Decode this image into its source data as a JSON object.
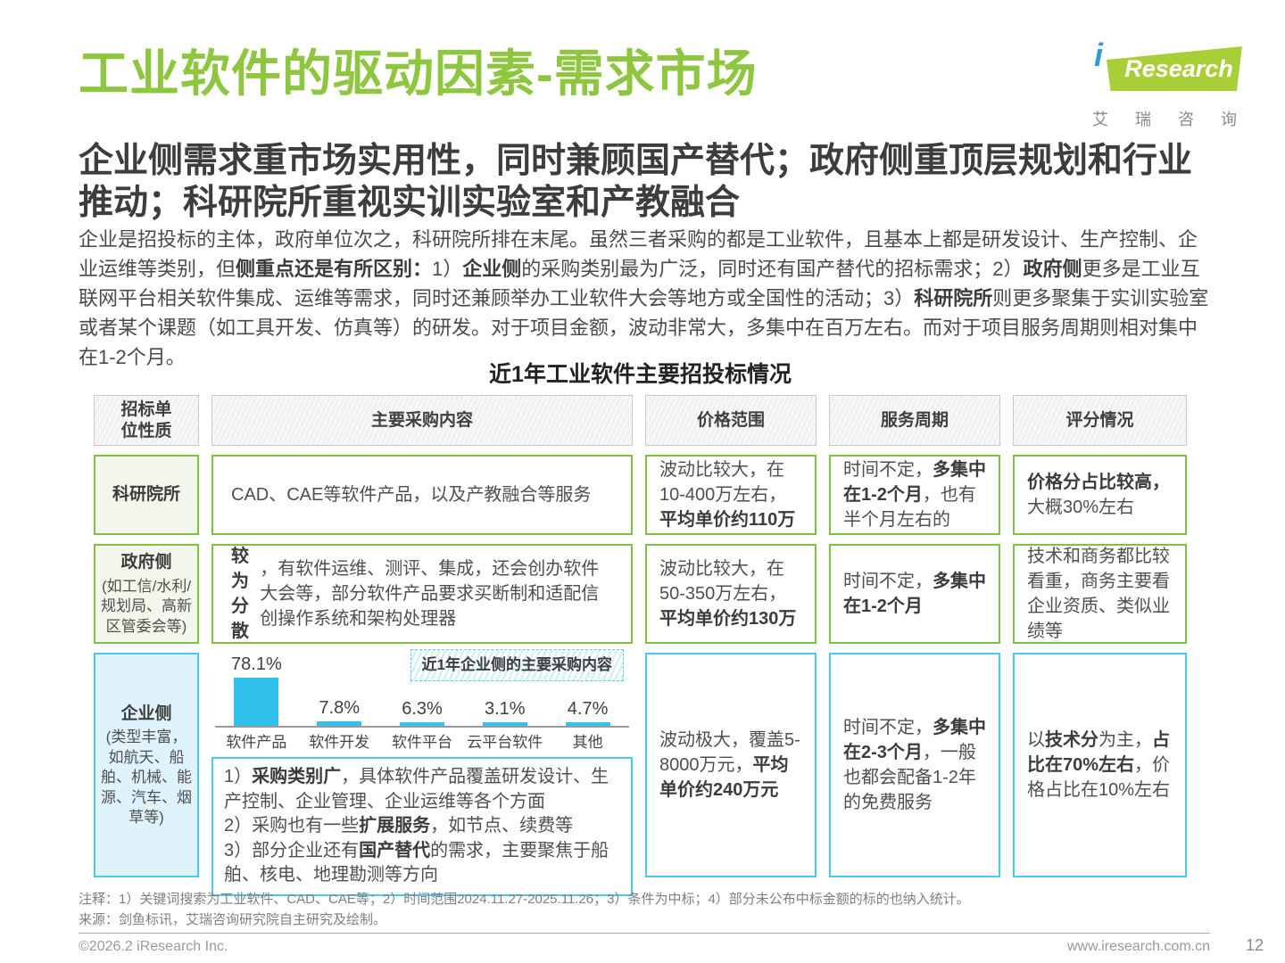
{
  "header": {
    "title": "工业软件的驱动因素-需求市场",
    "logo": {
      "brand_i": "i",
      "brand_rest": "Research",
      "subtext_chars": [
        "艾",
        "瑞",
        "咨",
        "询"
      ]
    }
  },
  "subtitle": "企业侧需求重市场实用性，同时兼顾国产替代；政府侧重顶层规划和行业推动；科研院所重视实训实验室和产教融合",
  "intro": {
    "segments": [
      {
        "t": "企业是招投标的主体，政府单位次之，科研院所排在末尾。虽然三者采购的都是工业软件，且基本上都是研发设计、生产控制、企业运维等类别，但",
        "b": false
      },
      {
        "t": "侧重点还是有所区别：",
        "b": true
      },
      {
        "t": "1）",
        "b": false
      },
      {
        "t": "企业侧",
        "b": true
      },
      {
        "t": "的采购类别最为广泛，同时还有国产替代的招标需求；2）",
        "b": false
      },
      {
        "t": "政府侧",
        "b": true
      },
      {
        "t": "更多是工业互联网平台相关软件集成、运维等需求，同时还兼顾举办工业软件大会等地方或全国性的活动；3）",
        "b": false
      },
      {
        "t": "科研院所",
        "b": true
      },
      {
        "t": "则更多聚集于实训实验室或者某个课题（如工具开发、仿真等）的研发。对于项目金额，波动非常大，多集中在百万左右。而对于项目服务周期则相对集中在1-2个月。",
        "b": false
      }
    ]
  },
  "table": {
    "title": "近1年工业软件主要招投标情况",
    "headers": [
      "招标单位性质",
      "主要采购内容",
      "价格范围",
      "服务周期",
      "评分情况"
    ],
    "rows": [
      {
        "label": "科研院所",
        "sublabel": "",
        "content_segments": [
          {
            "t": "CAD、CAE等软件产品，以及产教融合等服务",
            "b": false
          }
        ],
        "price_segments": [
          {
            "t": "波动比较大，在10-400万左右，",
            "b": false
          },
          {
            "t": "平均单价约110万",
            "b": true
          }
        ],
        "period_segments": [
          {
            "t": "时间不定，",
            "b": false
          },
          {
            "t": "多集中在1-2个月",
            "b": true
          },
          {
            "t": "，也有半个月左右的",
            "b": false
          }
        ],
        "score_segments": [
          {
            "t": "价格分占比较高，",
            "b": true
          },
          {
            "t": "大概30%左右",
            "b": false
          }
        ]
      },
      {
        "label": "政府侧",
        "sublabel": "(如工信/水利/规划局、高新区管委会等)",
        "content_segments": [
          {
            "t": "较为分散",
            "b": true
          },
          {
            "t": "，有软件运维、测评、集成，还会创办软件大会等，部分软件产品要求买断制和适配信创操作系统和架构处理器",
            "b": false
          }
        ],
        "price_segments": [
          {
            "t": "波动比较大，在50-350万左右，",
            "b": false
          },
          {
            "t": "平均单价约130万",
            "b": true
          }
        ],
        "period_segments": [
          {
            "t": "时间不定，",
            "b": false
          },
          {
            "t": "多集中在1-2个月",
            "b": true
          }
        ],
        "score_segments": [
          {
            "t": "技术和商务都比较看重，商务主要看企业资质、类似业绩等",
            "b": false
          }
        ]
      },
      {
        "label": "企业侧",
        "sublabel": "(类型丰富，如航天、船舶、机械、能源、汽车、烟草等)",
        "notes": [
          [
            {
              "t": "1）",
              "b": false
            },
            {
              "t": "采购类别广",
              "b": true
            },
            {
              "t": "，具体软件产品覆盖研发设计、生产控制、企业管理、企业运维等各个方面",
              "b": false
            }
          ],
          [
            {
              "t": "2）采购也有一些",
              "b": false
            },
            {
              "t": "扩展服务",
              "b": true
            },
            {
              "t": "，如节点、续费等",
              "b": false
            }
          ],
          [
            {
              "t": "3）部分企业还有",
              "b": false
            },
            {
              "t": "国产替代",
              "b": true
            },
            {
              "t": "的需求，主要聚焦于船舶、核电、地理勘测等方向",
              "b": false
            }
          ]
        ],
        "price_segments": [
          {
            "t": "波动极大，覆盖5-8000万元，",
            "b": false
          },
          {
            "t": "平均单价约240万元",
            "b": true
          }
        ],
        "period_segments": [
          {
            "t": "时间不定，",
            "b": false
          },
          {
            "t": "多集中在2-3个月",
            "b": true
          },
          {
            "t": "，一般也都会配备1-2年的免费服务",
            "b": false
          }
        ],
        "score_segments": [
          {
            "t": "以",
            "b": false
          },
          {
            "t": "技术分",
            "b": true
          },
          {
            "t": "为主，",
            "b": false
          },
          {
            "t": "占比在70%左右",
            "b": true
          },
          {
            "t": "，价格占比在10%左右",
            "b": false
          }
        ]
      }
    ]
  },
  "chart_data": {
    "type": "bar",
    "title": "近1年企业侧的主要采购内容",
    "categories": [
      "软件产品",
      "软件开发",
      "软件平台",
      "云平台软件",
      "其他"
    ],
    "values": [
      78.1,
      7.8,
      6.3,
      3.1,
      4.7
    ],
    "value_suffix": "%",
    "xlabel": "",
    "ylabel": "",
    "ylim": [
      0,
      80
    ],
    "grid": false,
    "legend": "none",
    "bar_color": "#30c2ec"
  },
  "footer": {
    "note_line1": "注释：1）关键词搜索为工业软件、CAD、CAE等；2）时间范围2024.11.27-2025.11.26；3）条件为中标；4）部分未公布中标金额的标的也纳入统计。",
    "note_line2": "来源：剑鱼标讯，艾瑞咨询研究院自主研究及绘制。",
    "copyright": "©2026.2 iResearch Inc.",
    "website": "www.iresearch.com.cn",
    "page_number": "12"
  },
  "colors": {
    "title_green": "#8fc640",
    "green_border": "#7ec142",
    "green_fill": "#f3f7eb",
    "cyan_border": "#47caf2",
    "cyan_fill": "#dff3fc",
    "bar_cyan": "#30c2ec"
  }
}
